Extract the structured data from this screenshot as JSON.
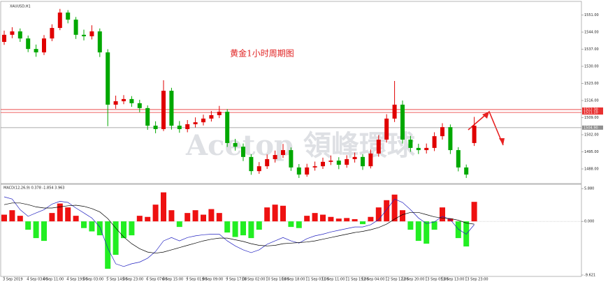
{
  "chart_data": [
    {
      "type": "candlestick",
      "title": "XAUUSD,H1",
      "annotation": "黄金1小时周期图",
      "watermark": "Acetop 領峰環球",
      "categories": [
        "3 Sep 2019",
        null,
        null,
        "4 Sep 03:00",
        null,
        "4 Sep 11:00",
        null,
        null,
        "4 Sep 19:00",
        null,
        "5 Sep 03:00",
        null,
        null,
        "5 Sep 14:00",
        null,
        "5 Sep 23:00",
        null,
        null,
        "6 Sep 07:00",
        null,
        "6 Sep 15:00",
        null,
        null,
        "9 Sep 01:00",
        null,
        "9 Sep 09:00",
        null,
        null,
        "9 Sep 17:00",
        null,
        "10 Sep 02:00",
        null,
        null,
        "10 Sep 10:00",
        null,
        "10 Sep 18:00",
        null,
        null,
        "11 Sep 03:00",
        null,
        "11 Sep 11:00",
        null,
        null,
        "11 Sep 19:00",
        null,
        "12 Sep 04:00",
        null,
        null,
        "12 Sep 12:00",
        null,
        "12 Sep 20:00",
        null,
        null,
        "13 Sep 05:00",
        null,
        "13 Sep 13:00",
        null,
        null,
        "13 Sep 23:00",
        null
      ],
      "open": [
        1540.0,
        1542.9,
        1544.3,
        1541.4,
        1537.1,
        1535.7,
        1541.4,
        1545.7,
        1552.0,
        1549.1,
        1542.9,
        1542.3,
        1544.3,
        1535.7,
        1514.3,
        1515.7,
        1516.6,
        1514.9,
        1512.9,
        1505.7,
        1504.3,
        1520.0,
        1505.7,
        1504.3,
        1506.3,
        1507.1,
        1508.6,
        1510.0,
        1511.4,
        1498.6,
        1497.1,
        1492.9,
        1487.1,
        1489.1,
        1492.0,
        1493.7,
        1495.7,
        1488.6,
        1485.7,
        1488.6,
        1489.1,
        1490.9,
        1491.4,
        1489.7,
        1492.0,
        1492.9,
        1489.1,
        1494.3,
        1500.0,
        1508.6,
        1514.3,
        1500.0,
        1496.6,
        1495.7,
        1496.6,
        1501.4,
        1505.1,
        1495.7,
        1488.6,
        1498.6
      ],
      "high": [
        1544.6,
        1546.0,
        1545.5,
        1542.6,
        1538.9,
        1542.8,
        1547.2,
        1553.5,
        1553.0,
        1550.2,
        1545.0,
        1546.8,
        1545.5,
        1537.0,
        1518.0,
        1518.2,
        1517.8,
        1516.3,
        1514.0,
        1507.5,
        1524.3,
        1521.2,
        1507.6,
        1508.0,
        1509.1,
        1510.2,
        1511.7,
        1513.8,
        1512.5,
        1500.3,
        1498.4,
        1494.0,
        1490.8,
        1493.9,
        1495.5,
        1498.2,
        1496.8,
        1490.0,
        1490.1,
        1491.0,
        1492.6,
        1493.5,
        1492.8,
        1493.6,
        1494.7,
        1494.0,
        1495.9,
        1501.8,
        1510.4,
        1524.0,
        1516.0,
        1501.5,
        1498.3,
        1498.4,
        1503.0,
        1506.7,
        1506.2,
        1496.9,
        1489.8,
        1509.3
      ],
      "low": [
        1538.8,
        1541.5,
        1540.0,
        1535.8,
        1533.9,
        1534.6,
        1540.3,
        1544.8,
        1547.6,
        1541.2,
        1540.6,
        1541.0,
        1533.8,
        1505.5,
        1512.6,
        1514.5,
        1513.4,
        1511.2,
        1504.0,
        1502.6,
        1503.5,
        1504.1,
        1502.8,
        1503.0,
        1505.0,
        1505.8,
        1507.4,
        1508.8,
        1497.0,
        1495.5,
        1491.2,
        1485.6,
        1486.0,
        1488.0,
        1490.6,
        1492.5,
        1487.2,
        1484.3,
        1484.8,
        1487.3,
        1488.0,
        1489.6,
        1487.9,
        1488.5,
        1490.6,
        1487.6,
        1488.2,
        1493.0,
        1498.8,
        1507.2,
        1498.4,
        1495.0,
        1494.1,
        1494.3,
        1495.3,
        1500.0,
        1494.1,
        1487.0,
        1484.3,
        1497.4
      ],
      "close": [
        1542.9,
        1544.3,
        1541.4,
        1537.1,
        1535.7,
        1541.4,
        1545.7,
        1552.0,
        1549.1,
        1542.9,
        1542.3,
        1544.3,
        1535.7,
        1514.3,
        1515.7,
        1516.6,
        1514.9,
        1512.9,
        1505.7,
        1504.3,
        1520.0,
        1505.7,
        1504.3,
        1506.3,
        1507.1,
        1508.6,
        1510.0,
        1511.4,
        1498.6,
        1497.1,
        1492.9,
        1487.1,
        1489.1,
        1492.0,
        1493.7,
        1495.7,
        1488.6,
        1485.7,
        1488.6,
        1489.1,
        1490.9,
        1491.4,
        1489.7,
        1492.0,
        1492.9,
        1489.1,
        1494.3,
        1500.0,
        1508.6,
        1514.3,
        1500.0,
        1496.6,
        1495.7,
        1496.6,
        1501.4,
        1505.1,
        1495.7,
        1488.6,
        1485.7,
        1505.7
      ],
      "up_color": "#e00000",
      "down_color": "#00a800",
      "ylim": [
        1482,
        1556
      ],
      "yticks": [
        {
          "value": 1488,
          "label": "1488.00"
        },
        {
          "value": 1495,
          "label": "1495.00"
        },
        {
          "value": 1502,
          "label": "1502.00"
        },
        {
          "value": 1509,
          "label": "1509.00"
        },
        {
          "value": 1516,
          "label": "1516.00"
        },
        {
          "value": 1523,
          "label": "1523.00"
        },
        {
          "value": 1530,
          "label": "1530.00"
        },
        {
          "value": 1537,
          "label": "1537.00"
        },
        {
          "value": 1544,
          "label": "1544.00"
        },
        {
          "value": 1551,
          "label": "1551.00"
        }
      ],
      "hlines": [
        {
          "value": 1512.3,
          "label": "1512.30",
          "color": "#e83030"
        },
        {
          "value": 1511.1,
          "label": "1511.10",
          "color": "#e83030"
        },
        {
          "value": 1504.9,
          "label": "1504.90",
          "color": "#909090"
        }
      ]
    },
    {
      "type": "macd",
      "title": "MACD(12,26,9) 0.378 -1.854 3.963",
      "histogram": [
        1.2,
        2.0,
        1.0,
        -1.5,
        -3.0,
        -3.5,
        1.5,
        3.2,
        2.5,
        1.0,
        -1.2,
        -1.8,
        -2.5,
        -8.5,
        -6.0,
        -3.0,
        -2.5,
        1.0,
        0.8,
        3.0,
        5.2,
        2.0,
        -1.0,
        1.5,
        2.0,
        1.2,
        2.2,
        1.5,
        -2.0,
        -2.8,
        -2.5,
        -3.0,
        -1.5,
        2.5,
        3.0,
        2.8,
        -1.0,
        -1.2,
        1.0,
        1.5,
        1.2,
        0.8,
        0.5,
        0.6,
        0.4,
        -0.5,
        0.8,
        2.5,
        3.8,
        4.8,
        2.0,
        -1.5,
        -3.5,
        -4.0,
        -1.5,
        2.5,
        0.5,
        -3.0,
        -4.5,
        3.5
      ],
      "pos_color": "#ee1111",
      "neg_color": "#22ee22",
      "lines": [
        {
          "color": "#2020c0",
          "values": [
            4.4,
            4.0,
            2.1,
            0.9,
            1.5,
            2.1,
            3.1,
            3.6,
            3.4,
            2.4,
            1.5,
            0.6,
            -1.0,
            -4.8,
            -7.6,
            -8.1,
            -7.6,
            -7.3,
            -6.6,
            -5.4,
            -3.5,
            -2.9,
            -3.5,
            -2.9,
            -2.6,
            -2.4,
            -2.3,
            -2.3,
            -3.5,
            -4.4,
            -5.1,
            -5.6,
            -5.1,
            -4.1,
            -3.5,
            -2.9,
            -3.5,
            -3.9,
            -3.1,
            -2.6,
            -2.3,
            -1.9,
            -1.6,
            -1.3,
            -1.0,
            -1.0,
            -0.6,
            0.3,
            2.1,
            4.0,
            3.4,
            2.1,
            0.6,
            -0.4,
            -0.1,
            0.9,
            0.3,
            -1.4,
            -2.3,
            -0.6
          ]
        },
        {
          "color": "#000000",
          "values": [
            3.0,
            3.3,
            3.3,
            3.0,
            2.6,
            2.4,
            2.4,
            2.6,
            2.8,
            2.9,
            2.7,
            2.3,
            1.7,
            0.5,
            -1.2,
            -2.8,
            -4.0,
            -4.9,
            -5.5,
            -5.7,
            -5.5,
            -5.1,
            -4.7,
            -4.3,
            -3.9,
            -3.5,
            -3.2,
            -3.0,
            -3.0,
            -3.3,
            -3.6,
            -4.0,
            -4.3,
            -4.4,
            -4.3,
            -4.0,
            -3.9,
            -3.8,
            -3.7,
            -3.5,
            -3.2,
            -2.9,
            -2.6,
            -2.3,
            -2.0,
            -1.8,
            -1.5,
            -1.1,
            -0.5,
            0.4,
            1.2,
            1.6,
            1.6,
            1.2,
            0.8,
            0.6,
            0.5,
            0.2,
            -0.3,
            -0.5
          ]
        }
      ],
      "ylim": [
        -9.621,
        6.4
      ],
      "yticks": [
        {
          "value": 5.88,
          "label": "5.880"
        },
        {
          "value": 0,
          "label": "0.000"
        },
        {
          "value": -9.621,
          "label": "-9.621"
        }
      ]
    }
  ]
}
